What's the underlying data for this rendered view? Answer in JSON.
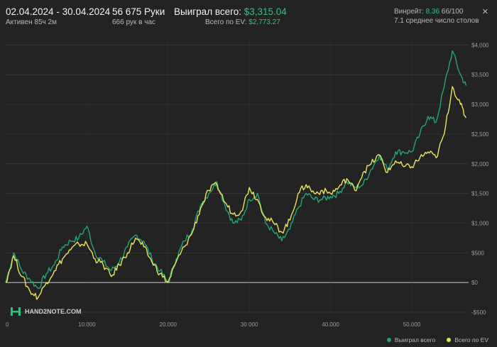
{
  "header": {
    "date_range": "02.04.2024 - 30.04.2024",
    "active": "Активен 85ч 2м",
    "hands": "56 675 Руки",
    "hands_per_hour": "666 рук в час",
    "won_label": "Выиграл всего:",
    "won_value": "$3,315.04",
    "ev_label": "Всего по EV:",
    "ev_value": "$2,773.27",
    "winrate_label": "Винрейт:",
    "winrate_value": "8.36",
    "winrate_rest": "66/100",
    "tables": "7.1 среднее число столов"
  },
  "logo_text": "HAND2NOTE.COM",
  "legend": {
    "won": "Выиграл всего",
    "ev": "Всего по EV"
  },
  "colors": {
    "won": "#1fa774",
    "ev": "#e9e45a",
    "background": "#232323",
    "grid": "#3a3a3a",
    "zero": "#cfcfcf"
  },
  "icons": {
    "close": "close-icon"
  },
  "chart_data": {
    "type": "line",
    "xlim": [
      0,
      57000
    ],
    "ylim": [
      -500,
      4100
    ],
    "x_ticks": [
      0,
      10000,
      20000,
      30000,
      40000,
      50000
    ],
    "x_tick_labels": [
      "0",
      "10.000",
      "20.000",
      "30 000",
      "40.000",
      "50.000"
    ],
    "y_ticks": [
      -500,
      0,
      500,
      1000,
      1500,
      2000,
      2500,
      3000,
      3500,
      4000
    ],
    "y_tick_labels": [
      "-$500",
      "$0",
      "$500",
      "$1,000",
      "$1,500",
      "$2,000",
      "$2,500",
      "$3,000",
      "$3,500",
      "$4,000"
    ],
    "grid": true,
    "legend_position": "bottom-right",
    "series": [
      {
        "name": "Выиграл всего",
        "x": [
          0,
          1000,
          2000,
          3000,
          4000,
          5000,
          6000,
          7000,
          8000,
          9000,
          10000,
          11000,
          12000,
          13000,
          14000,
          15000,
          16000,
          17000,
          18000,
          19000,
          20000,
          21000,
          22000,
          23000,
          24000,
          25000,
          26000,
          27000,
          28000,
          29000,
          30000,
          31000,
          32000,
          33000,
          34000,
          35000,
          36000,
          37000,
          38000,
          39000,
          40000,
          41000,
          42000,
          43000,
          44000,
          45000,
          46000,
          47000,
          48000,
          49000,
          50000,
          51000,
          52000,
          53000,
          54000,
          55000,
          56000,
          56675
        ],
        "y": [
          0,
          500,
          200,
          50,
          -100,
          150,
          300,
          600,
          700,
          750,
          950,
          500,
          350,
          200,
          350,
          600,
          800,
          700,
          400,
          200,
          0,
          400,
          700,
          900,
          1300,
          1500,
          1700,
          1300,
          1000,
          1050,
          1400,
          1500,
          1000,
          850,
          700,
          900,
          1250,
          1500,
          1400,
          1400,
          1450,
          1500,
          1700,
          1600,
          1650,
          1900,
          2150,
          1900,
          2200,
          2200,
          2200,
          2500,
          2800,
          2700,
          3300,
          3900,
          3500,
          3315
        ]
      },
      {
        "name": "Всего по EV",
        "x": [
          0,
          1000,
          2000,
          3000,
          4000,
          5000,
          6000,
          7000,
          8000,
          9000,
          10000,
          11000,
          12000,
          13000,
          14000,
          15000,
          16000,
          17000,
          18000,
          19000,
          20000,
          21000,
          22000,
          23000,
          24000,
          25000,
          26000,
          27000,
          28000,
          29000,
          30000,
          31000,
          32000,
          33000,
          34000,
          35000,
          36000,
          37000,
          38000,
          39000,
          40000,
          41000,
          42000,
          43000,
          44000,
          45000,
          46000,
          47000,
          48000,
          49000,
          50000,
          51000,
          52000,
          53000,
          54000,
          55000,
          56000,
          56675
        ],
        "y": [
          0,
          450,
          100,
          -150,
          -250,
          0,
          200,
          400,
          550,
          650,
          650,
          400,
          300,
          100,
          300,
          500,
          750,
          600,
          350,
          150,
          0,
          350,
          600,
          850,
          1250,
          1550,
          1650,
          1350,
          1150,
          1200,
          1600,
          1400,
          1100,
          1000,
          850,
          1050,
          1500,
          1650,
          1500,
          1550,
          1500,
          1600,
          1750,
          1550,
          1850,
          2000,
          2150,
          1850,
          2050,
          1950,
          1950,
          2100,
          2200,
          2100,
          2500,
          3300,
          3000,
          2773
        ]
      }
    ]
  }
}
